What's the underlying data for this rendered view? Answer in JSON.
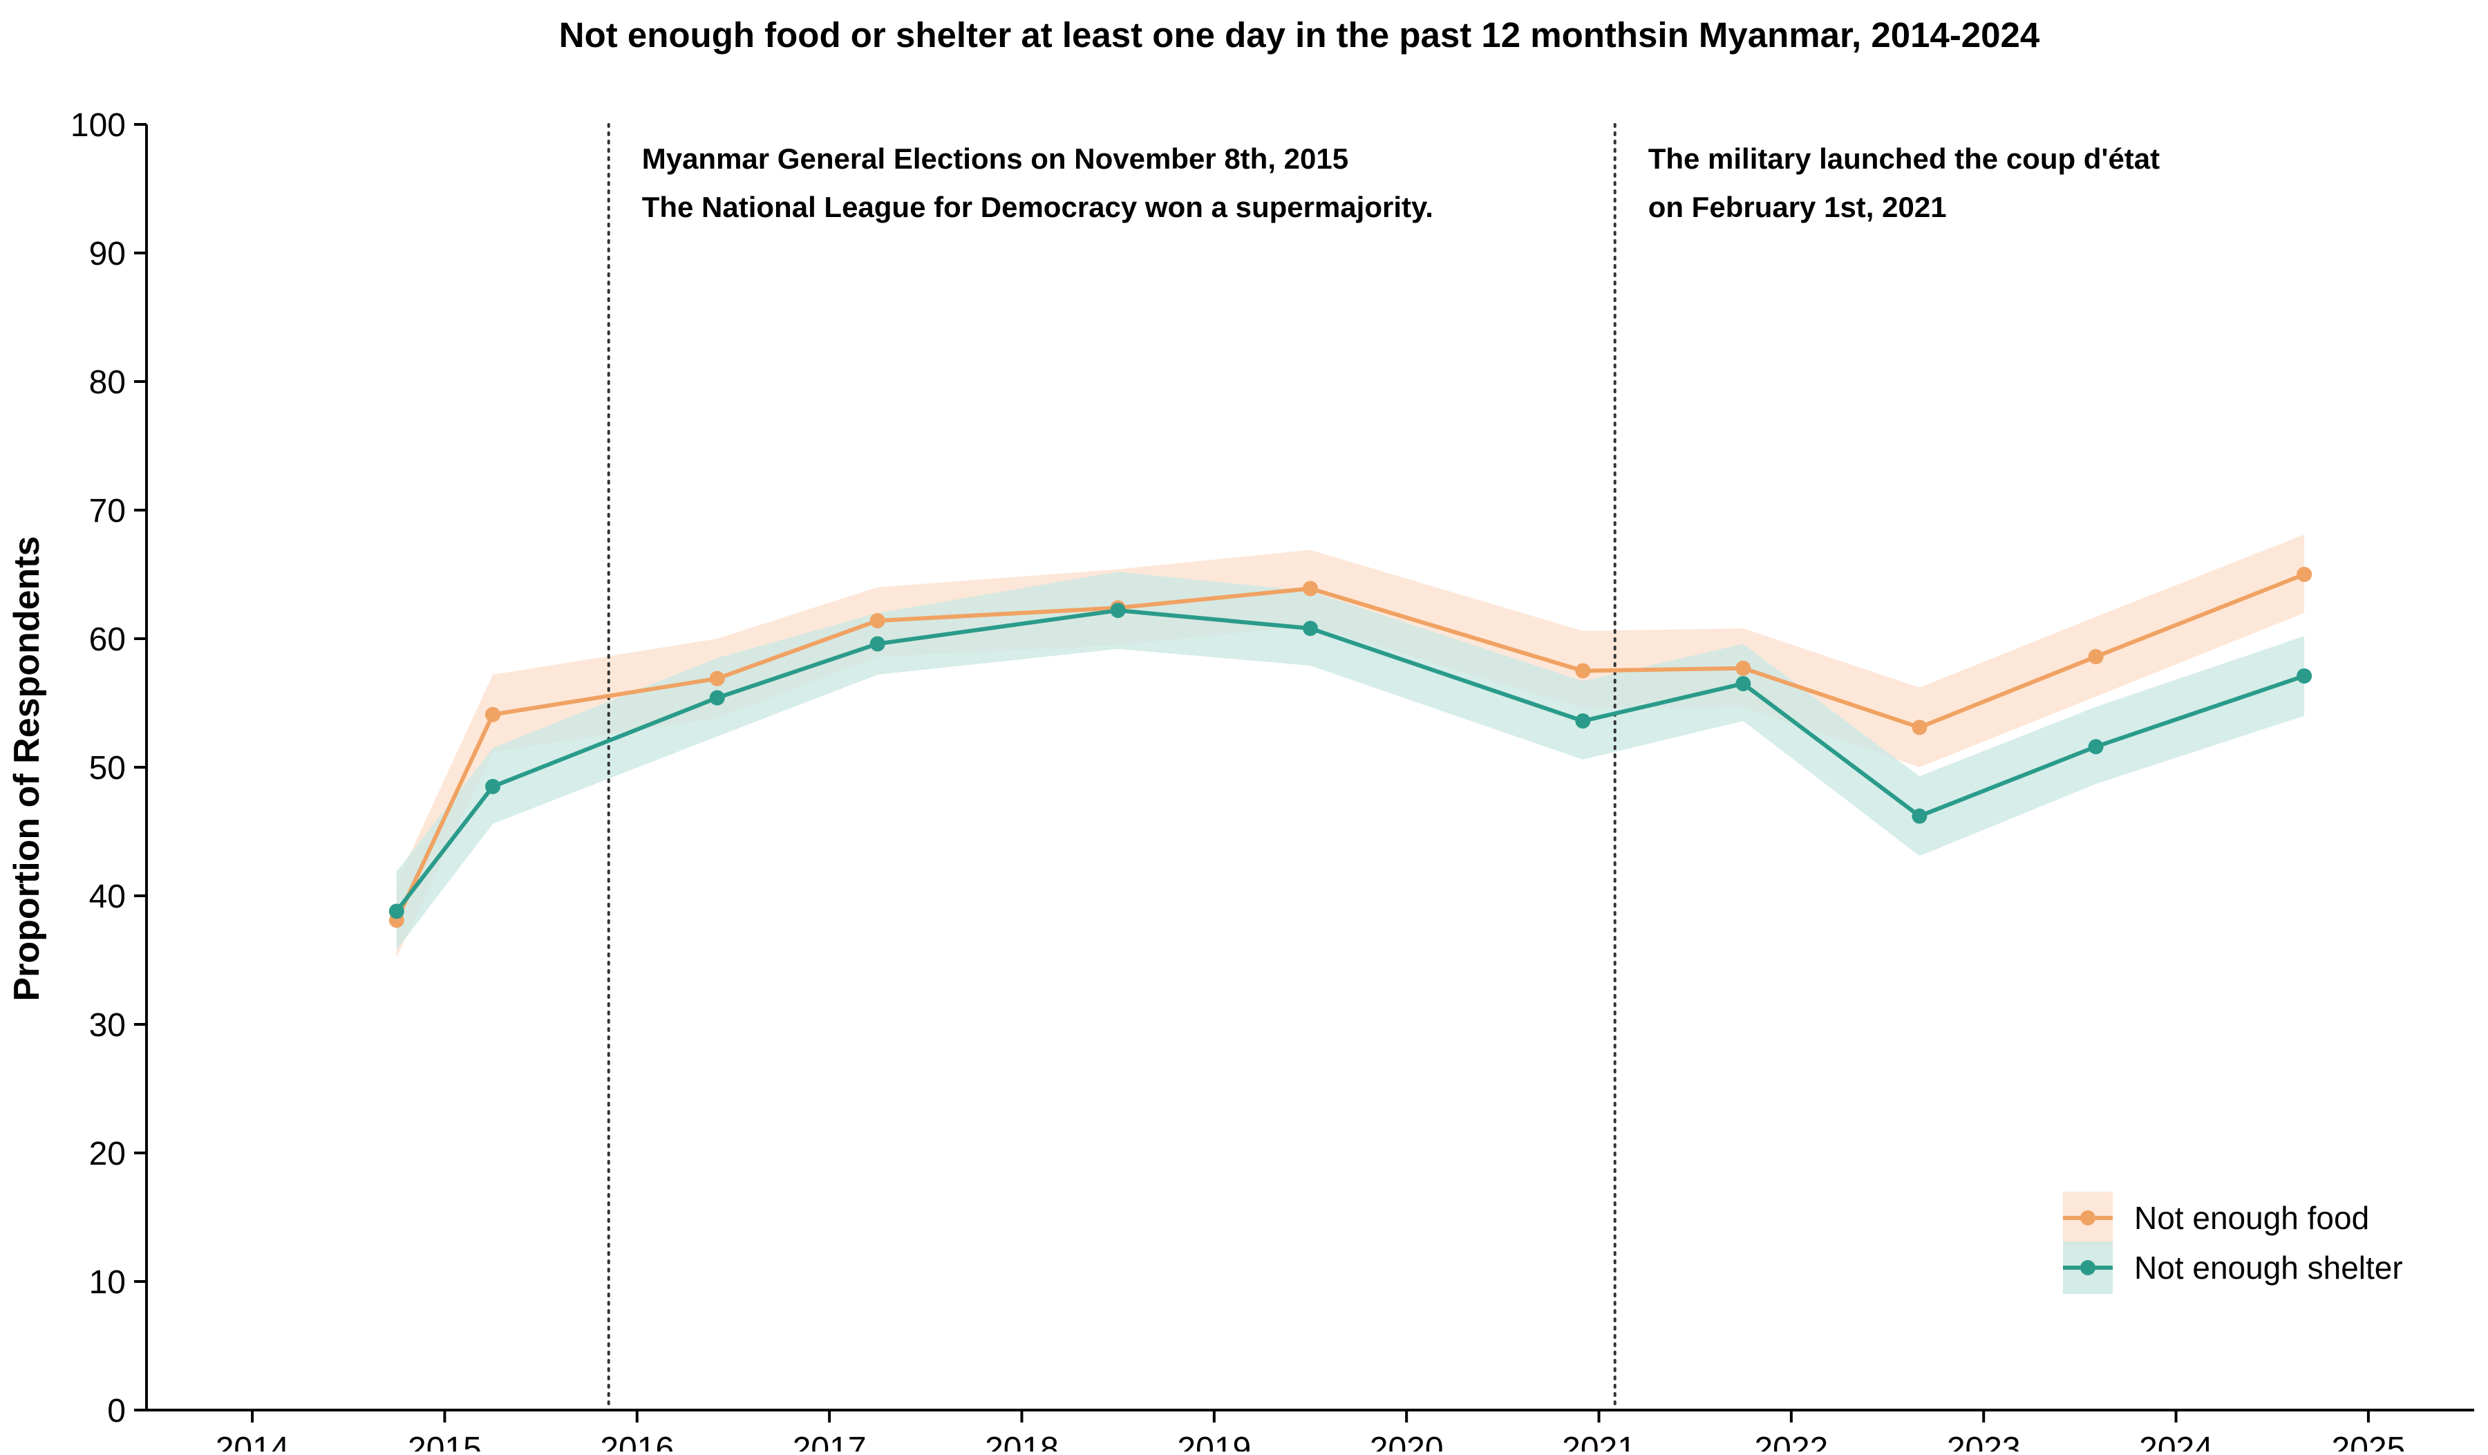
{
  "chart_data": {
    "type": "line",
    "title": "Not enough food or shelter at least one day in the past 12 monthsin Myanmar, 2014-2024",
    "xlabel": "",
    "ylabel": "Proportion of Respondents",
    "xlim": [
      2013.45,
      2025.55
    ],
    "ylim": [
      0,
      100
    ],
    "x_ticks": [
      "2014",
      "2015",
      "2016",
      "2017",
      "2018",
      "2019",
      "2020",
      "2021",
      "2022",
      "2023",
      "2024",
      "2025"
    ],
    "y_ticks": [
      "0",
      "10",
      "20",
      "30",
      "40",
      "50",
      "60",
      "70",
      "80",
      "90",
      "100"
    ],
    "grid": false,
    "legend_position": "lower-right",
    "series": [
      {
        "name": "Not enough food",
        "color": "#F0A263",
        "band_color": "#FDE3D1",
        "points": [
          {
            "x": "2014-10",
            "y": 38.1,
            "lo": 35.2,
            "hi": 41.0
          },
          {
            "x": "2015-04",
            "y": 54.1,
            "lo": 51.2,
            "hi": 57.2
          },
          {
            "x": "2016-06",
            "y": 56.9,
            "lo": 53.8,
            "hi": 60.0
          },
          {
            "x": "2017-04",
            "y": 61.4,
            "lo": 58.6,
            "hi": 64.0
          },
          {
            "x": "2018-07",
            "y": 62.4,
            "lo": 59.5,
            "hi": 65.4
          },
          {
            "x": "2019-07",
            "y": 63.9,
            "lo": 61.0,
            "hi": 66.9
          },
          {
            "x": "2020-12",
            "y": 57.5,
            "lo": 54.6,
            "hi": 60.6
          },
          {
            "x": "2021-10",
            "y": 57.7,
            "lo": 54.7,
            "hi": 60.8
          },
          {
            "x": "2022-09",
            "y": 53.1,
            "lo": 50.0,
            "hi": 56.2
          },
          {
            "x": "2023-08",
            "y": 58.6,
            "lo": 55.5,
            "hi": 61.7
          },
          {
            "x": "2024-09",
            "y": 65.0,
            "lo": 62.0,
            "hi": 68.1
          }
        ]
      },
      {
        "name": "Not enough shelter",
        "color": "#2A9B8A",
        "band_color": "#CCE8E3",
        "points": [
          {
            "x": "2014-10",
            "y": 38.8,
            "lo": 35.8,
            "hi": 41.9
          },
          {
            "x": "2015-04",
            "y": 48.5,
            "lo": 45.6,
            "hi": 51.5
          },
          {
            "x": "2016-06",
            "y": 55.4,
            "lo": 52.4,
            "hi": 58.5
          },
          {
            "x": "2017-04",
            "y": 59.6,
            "lo": 57.2,
            "hi": 62.0
          },
          {
            "x": "2018-07",
            "y": 62.2,
            "lo": 59.2,
            "hi": 65.2
          },
          {
            "x": "2019-07",
            "y": 60.8,
            "lo": 57.9,
            "hi": 63.7
          },
          {
            "x": "2020-12",
            "y": 53.6,
            "lo": 50.6,
            "hi": 56.7
          },
          {
            "x": "2021-10",
            "y": 56.5,
            "lo": 53.6,
            "hi": 59.6
          },
          {
            "x": "2022-09",
            "y": 46.2,
            "lo": 43.1,
            "hi": 49.3
          },
          {
            "x": "2023-08",
            "y": 51.6,
            "lo": 48.7,
            "hi": 54.7
          },
          {
            "x": "2024-09",
            "y": 57.1,
            "lo": 54.0,
            "hi": 60.2
          }
        ]
      }
    ],
    "annotations": [
      {
        "x": "2015-11-08",
        "lines": [
          "Myanmar General Elections on November 8th, 2015",
          "The National League for Democracy won a supermajority."
        ]
      },
      {
        "x": "2021-02-01",
        "lines": [
          "The military launched the coup d'état",
          "on February 1st, 2021"
        ]
      }
    ]
  }
}
